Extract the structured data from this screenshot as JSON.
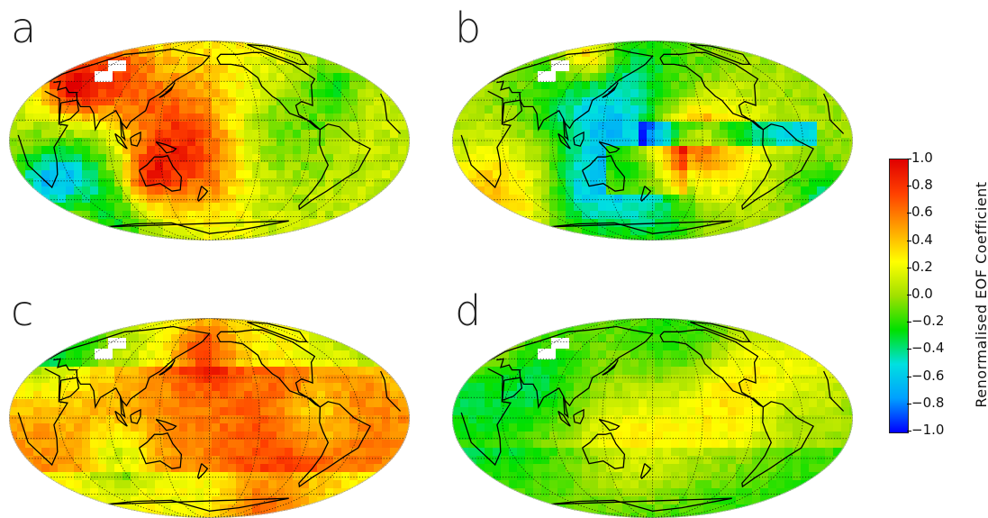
{
  "panels": [
    {
      "letter": "a",
      "theme": "mixed"
    },
    {
      "letter": "b",
      "theme": "dipole"
    },
    {
      "letter": "c",
      "theme": "warm"
    },
    {
      "letter": "d",
      "theme": "cool"
    }
  ],
  "colorbar": {
    "label": "Renormalised EOF Coefficient",
    "ticks": [
      "1.0",
      "0.8",
      "0.6",
      "0.4",
      "0.2",
      "0.0",
      "−0.2",
      "−0.4",
      "−0.6",
      "−0.8",
      "−1.0"
    ],
    "range": [
      -1.0,
      1.0
    ],
    "colors": [
      "#0000ff",
      "#00a0ff",
      "#00e0e0",
      "#00e000",
      "#a0e000",
      "#ffff00",
      "#ffa000",
      "#ff4000",
      "#e00000"
    ]
  },
  "map": {
    "projection": "Mollweide",
    "graticule": "dotted",
    "continent_outlines": true
  }
}
